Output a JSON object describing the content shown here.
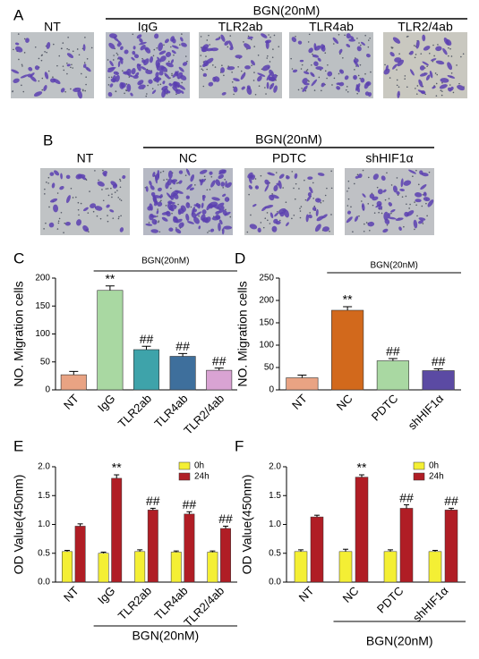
{
  "image_panels": [
    {
      "label": "A",
      "group_label": "BGN(20nM)",
      "images": [
        "NT",
        "IgG",
        "TLR2ab",
        "TLR4ab",
        "TLR2/4ab"
      ]
    },
    {
      "label": "B",
      "group_label": "BGN(20nM)",
      "images": [
        "NT",
        "NC",
        "PDTC",
        "shHIF1α"
      ]
    }
  ],
  "chart_data": [
    {
      "type": "bar",
      "panel_label": "C",
      "ylabel": "NO. Migration cells",
      "group_label": "BGN(20nM)",
      "categories": [
        "NT",
        "IgG",
        "TLR2ab",
        "TLR4ab",
        "TLR2/4ab"
      ],
      "values": [
        27,
        178,
        72,
        60,
        35
      ],
      "errors": [
        6,
        8,
        6,
        5,
        4
      ],
      "colors": [
        "#e9a383",
        "#a9d8a2",
        "#3ea3aa",
        "#3e6f9c",
        "#d9a3d3"
      ],
      "annotations": [
        null,
        "**",
        "##",
        "##",
        "##"
      ],
      "ylim": [
        0,
        200
      ],
      "yticks": [
        0,
        50,
        100,
        150,
        200
      ]
    },
    {
      "type": "bar",
      "panel_label": "D",
      "ylabel": "NO. Migration cells",
      "group_label": "BGN(20nM)",
      "categories": [
        "NT",
        "NC",
        "PDTC",
        "shHIF1α"
      ],
      "values": [
        27,
        178,
        65,
        43
      ],
      "errors": [
        6,
        8,
        5,
        4
      ],
      "colors": [
        "#e9a383",
        "#d2691c",
        "#a9d8a2",
        "#5b4aa3"
      ],
      "annotations": [
        null,
        "**",
        "##",
        "##"
      ],
      "ylim": [
        0,
        250
      ],
      "yticks": [
        0,
        50,
        100,
        150,
        200,
        250
      ]
    },
    {
      "type": "grouped_bar",
      "panel_label": "E",
      "ylabel": "OD Value(450nm)",
      "group_label": "BGN(20nM)",
      "categories": [
        "NT",
        "IgG",
        "TLR2ab",
        "TLR4ab",
        "TLR2/4ab"
      ],
      "series": [
        {
          "name": "0h",
          "color": "#f4ef34",
          "values": [
            0.53,
            0.5,
            0.53,
            0.52,
            0.52
          ],
          "errors": [
            0.02,
            0.02,
            0.03,
            0.02,
            0.02
          ],
          "annotations": [
            null,
            null,
            null,
            null,
            null
          ]
        },
        {
          "name": "24h",
          "color": "#b01d25",
          "values": [
            0.97,
            1.8,
            1.25,
            1.18,
            0.93
          ],
          "errors": [
            0.04,
            0.06,
            0.03,
            0.04,
            0.04
          ],
          "annotations": [
            null,
            "**",
            "##",
            "##",
            "##"
          ]
        }
      ],
      "ylim": [
        0,
        2
      ],
      "yticks": [
        {
          "value": 0,
          "label": "0.0"
        },
        0.5,
        {
          "value": 1,
          "label": "1.0"
        },
        1.5,
        {
          "value": 2,
          "label": "2.0"
        }
      ]
    },
    {
      "type": "grouped_bar",
      "panel_label": "F",
      "ylabel": "OD Value(450nm)",
      "group_label": "BGN(20nM)",
      "categories": [
        "NT",
        "NC",
        "PDTC",
        "shHIF1α"
      ],
      "series": [
        {
          "name": "0h",
          "color": "#f4ef34",
          "values": [
            0.53,
            0.53,
            0.53,
            0.53
          ],
          "errors": [
            0.03,
            0.04,
            0.03,
            0.02
          ],
          "annotations": [
            null,
            null,
            null,
            null
          ]
        },
        {
          "name": "24h",
          "color": "#b01d25",
          "values": [
            1.13,
            1.82,
            1.28,
            1.25
          ],
          "errors": [
            0.03,
            0.04,
            0.06,
            0.03
          ],
          "annotations": [
            null,
            "**",
            "##",
            "##"
          ]
        }
      ],
      "ylim": [
        0,
        2
      ],
      "yticks": [
        {
          "value": 0,
          "label": "0.0"
        },
        0.5,
        {
          "value": 1,
          "label": "1.0"
        },
        1.5,
        {
          "value": 2,
          "label": "2.0"
        }
      ]
    }
  ]
}
